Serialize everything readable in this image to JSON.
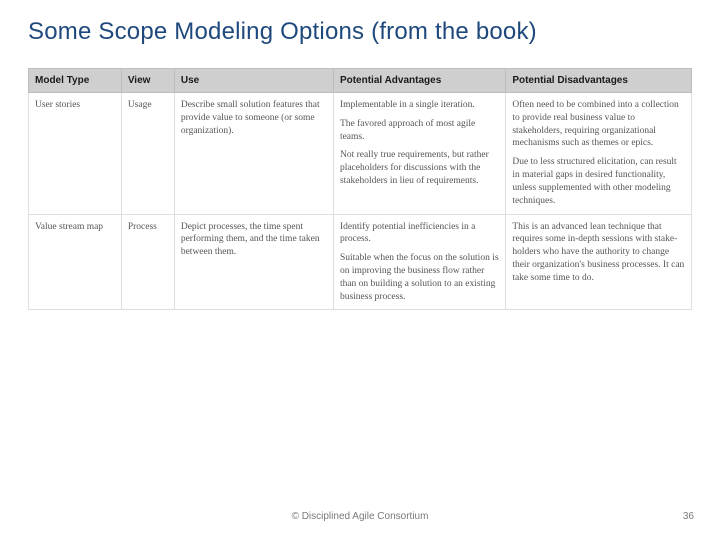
{
  "title": "Some Scope Modeling Options (from the book)",
  "title_color": "#1f497d",
  "table": {
    "type": "table",
    "header_bg": "#cfcfcf",
    "header_fg": "#1a1a1a",
    "body_fg": "#555555",
    "border_color": "#dedede",
    "columns": [
      {
        "label": "Model Type",
        "width_pct": 14
      },
      {
        "label": "View",
        "width_pct": 8
      },
      {
        "label": "Use",
        "width_pct": 24
      },
      {
        "label": "Potential Advantages",
        "width_pct": 26
      },
      {
        "label": "Potential Disadvantages",
        "width_pct": 28
      }
    ],
    "rows": [
      {
        "model_type": "User stories",
        "view": "Usage",
        "use": [
          "Describe small solution features that provide value to someone (or some organization)."
        ],
        "advantages": [
          "Implementable in a single iteration.",
          "The favored approach of most agile teams.",
          "Not really true requirements, but rather placeholders for discussions with the stakeholders in lieu of requirements."
        ],
        "disadvantages": [
          "Often need to be combined into a collection to provide real business value to stakeholders, requiring organizational mechanisms such as themes or epics.",
          "Due to less structured elicitation, can result in material gaps in desired functionality, unless supplemented with other modeling techniques."
        ]
      },
      {
        "model_type": "Value stream map",
        "view": "Process",
        "use": [
          "Depict processes, the time spent performing them, and the time taken between them."
        ],
        "advantages": [
          "Identify potential inefficiencies in a process.",
          "Suitable when the focus on the solution is on improving the business flow rather than on building a solution to an existing business process."
        ],
        "disadvantages": [
          "This is an advanced lean technique that requires some in-depth sessions with stake­holders who have the authority to change their organization's business processes. It can take some time to do."
        ]
      }
    ]
  },
  "footer": "© Disciplined Agile Consortium",
  "page_number": "36"
}
